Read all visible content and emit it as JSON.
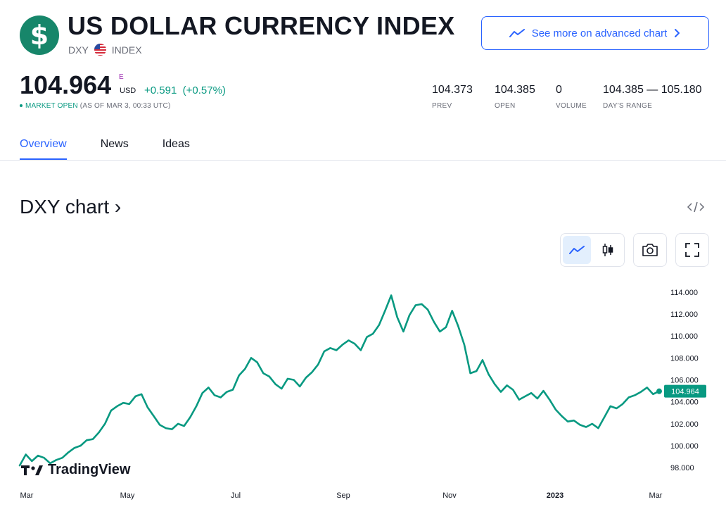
{
  "header": {
    "logo_glyph": "$",
    "title": "US DOLLAR CURRENCY INDEX",
    "symbol": "DXY",
    "type": "INDEX",
    "advanced_chart_label": "See more on advanced chart"
  },
  "quote": {
    "price": "104.964",
    "exchange_mark": "E",
    "currency": "USD",
    "change": "+0.591",
    "change_pct": "(+0.57%)",
    "market_status": "MARKET OPEN",
    "as_of": "(AS OF MAR 3, 00:33 UTC)"
  },
  "stats": [
    {
      "value": "104.373",
      "label": "PREV"
    },
    {
      "value": "104.385",
      "label": "OPEN"
    },
    {
      "value": "0",
      "label": "VOLUME"
    },
    {
      "value": "104.385 — 105.180",
      "label": "DAY'S RANGE"
    }
  ],
  "tabs": [
    {
      "label": "Overview",
      "active": true
    },
    {
      "label": "News",
      "active": false
    },
    {
      "label": "Ideas",
      "active": false
    }
  ],
  "chart_section": {
    "title": "DXY chart ›",
    "brand": "TradingView",
    "icons": [
      "embed-code-icon",
      "line-chart-icon",
      "candles-icon",
      "camera-icon",
      "fullscreen-icon"
    ]
  },
  "colors": {
    "accent": "#2962ff",
    "line": "#089981",
    "brand_green": "#17866a"
  },
  "chart_data": {
    "type": "line",
    "x_ticks": [
      "Mar",
      "May",
      "Jul",
      "Sep",
      "Nov",
      "2023",
      "Mar"
    ],
    "y_ticks": [
      "114.000",
      "112.000",
      "110.000",
      "108.000",
      "106.000",
      "104.000",
      "102.000",
      "100.000",
      "98.000"
    ],
    "ylim": [
      97.5,
      114.5
    ],
    "last_value_label": "104.964",
    "grid": false,
    "series": [
      {
        "values": [
          98.2,
          99.2,
          98.6,
          99.1,
          98.9,
          98.4,
          98.7,
          98.9,
          99.4,
          99.8,
          100.0,
          100.5,
          100.6,
          101.2,
          102.0,
          103.2,
          103.6,
          103.9,
          103.8,
          104.5,
          104.7,
          103.5,
          102.7,
          101.9,
          101.6,
          101.5,
          102.0,
          101.8,
          102.6,
          103.6,
          104.8,
          105.3,
          104.6,
          104.4,
          104.9,
          105.1,
          106.4,
          107.0,
          108.0,
          107.6,
          106.6,
          106.3,
          105.6,
          105.2,
          106.1,
          106.0,
          105.4,
          106.2,
          106.7,
          107.4,
          108.6,
          108.9,
          108.7,
          109.2,
          109.6,
          109.3,
          108.7,
          109.9,
          110.2,
          111.0,
          112.3,
          113.7,
          111.7,
          110.4,
          111.9,
          112.8,
          112.9,
          112.4,
          111.3,
          110.4,
          110.8,
          112.3,
          110.9,
          109.2,
          106.6,
          106.8,
          107.8,
          106.5,
          105.6,
          104.9,
          105.5,
          105.1,
          104.2,
          104.5,
          104.8,
          104.3,
          105.0,
          104.2,
          103.3,
          102.7,
          102.2,
          102.3,
          101.9,
          101.7,
          102.0,
          101.6,
          102.6,
          103.6,
          103.4,
          103.8,
          104.4,
          104.6,
          104.9,
          105.3,
          104.7,
          104.964
        ]
      }
    ]
  }
}
